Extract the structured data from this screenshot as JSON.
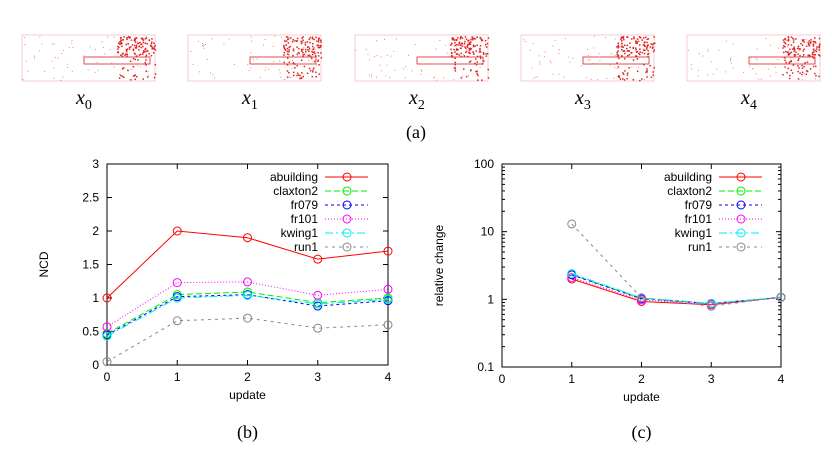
{
  "panel_a": {
    "label": "(a)",
    "images": [
      {
        "sym": "x",
        "sub": "0"
      },
      {
        "sym": "x",
        "sub": "1"
      },
      {
        "sym": "x",
        "sub": "2"
      },
      {
        "sym": "x",
        "sub": "3"
      },
      {
        "sym": "x",
        "sub": "4"
      }
    ]
  },
  "chart_data": [
    {
      "panel": "(b)",
      "type": "line",
      "xlabel": "update",
      "ylabel": "NCD",
      "x": [
        0,
        1,
        2,
        3,
        4
      ],
      "xlim": [
        0,
        4
      ],
      "ylim": [
        0,
        3
      ],
      "yticks": [
        "0",
        "0.5",
        "1",
        "1.5",
        "2",
        "2.5",
        "3"
      ],
      "xticks": [
        "0",
        "1",
        "2",
        "3",
        "4"
      ],
      "legend": "top-right",
      "series": [
        {
          "name": "abuilding",
          "color": "#ff0000",
          "dash": "",
          "values": [
            1.0,
            2.0,
            1.9,
            1.58,
            1.7
          ]
        },
        {
          "name": "claxton2",
          "color": "#00ee00",
          "dash": "6,3",
          "values": [
            0.47,
            1.05,
            1.09,
            0.93,
            1.0
          ]
        },
        {
          "name": "fr079",
          "color": "#0000ff",
          "dash": "3,3",
          "values": [
            0.45,
            1.02,
            1.05,
            0.88,
            0.96
          ]
        },
        {
          "name": "fr101",
          "color": "#ff00ff",
          "dash": "1,2",
          "values": [
            0.57,
            1.23,
            1.24,
            1.04,
            1.13
          ]
        },
        {
          "name": "kwing1",
          "color": "#00eeee",
          "dash": "8,3,2,3",
          "values": [
            0.43,
            1.0,
            1.04,
            0.91,
            0.98
          ]
        },
        {
          "name": "run1",
          "color": "#888888",
          "dash": "3,4",
          "values": [
            0.05,
            0.66,
            0.7,
            0.55,
            0.6
          ]
        }
      ]
    },
    {
      "panel": "(c)",
      "type": "line",
      "xlabel": "update",
      "ylabel": "relative change",
      "x": [
        1,
        2,
        3,
        4
      ],
      "xlim": [
        0,
        4
      ],
      "ylim": [
        0.1,
        100
      ],
      "yscale": "log",
      "yticks": [
        "0.1",
        "1",
        "10",
        "100"
      ],
      "xticks": [
        "0",
        "1",
        "2",
        "3",
        "4"
      ],
      "legend": "top-right",
      "series": [
        {
          "name": "abuilding",
          "color": "#ff0000",
          "dash": "",
          "values": [
            2.0,
            0.93,
            0.83,
            1.07
          ]
        },
        {
          "name": "claxton2",
          "color": "#00ee00",
          "dash": "6,3",
          "values": [
            2.3,
            1.04,
            0.86,
            1.07
          ]
        },
        {
          "name": "fr079",
          "color": "#0000ff",
          "dash": "3,3",
          "values": [
            2.3,
            1.02,
            0.87,
            1.07
          ]
        },
        {
          "name": "fr101",
          "color": "#ff00ff",
          "dash": "1,2",
          "values": [
            2.1,
            0.98,
            0.84,
            1.07
          ]
        },
        {
          "name": "kwing1",
          "color": "#00eeee",
          "dash": "8,3,2,3",
          "values": [
            2.4,
            1.05,
            0.87,
            1.07
          ]
        },
        {
          "name": "run1",
          "color": "#888888",
          "dash": "3,4",
          "values": [
            13,
            1.05,
            0.79,
            1.08
          ]
        }
      ]
    }
  ]
}
